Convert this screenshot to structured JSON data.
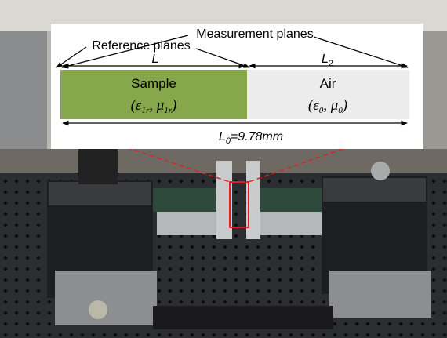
{
  "overlay": {
    "measurement_planes": "Measurement planes",
    "reference_planes": "Reference planes",
    "length_sample": "L",
    "length_air": {
      "base": "L",
      "sub": "2"
    },
    "sample": {
      "label": "Sample",
      "params": [
        "(ε",
        "1r",
        ", μ",
        "1r",
        ")"
      ]
    },
    "air": {
      "label": "Air",
      "params": [
        "(ε",
        "0",
        ", μ",
        "0",
        ")"
      ]
    },
    "total_length": {
      "base": "L",
      "sub": "0",
      "rest": "=9.78mm"
    }
  }
}
